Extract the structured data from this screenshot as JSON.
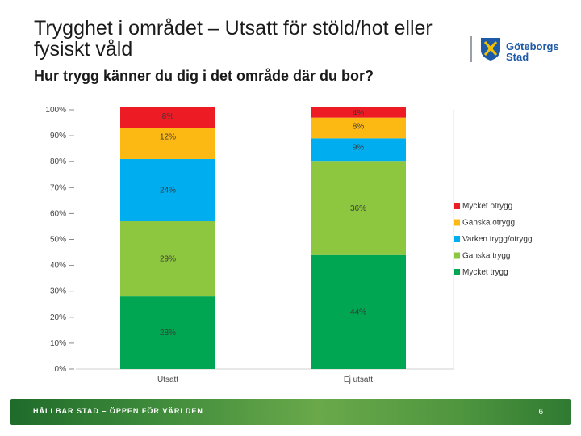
{
  "header": {
    "title": "Trygghet i området – Utsatt för stöld/hot eller fysiskt våld",
    "subtitle": "Hur trygg känner du dig i det område där du bor?"
  },
  "logo": {
    "name_line1": "Göteborgs",
    "name_line2": "Stad"
  },
  "footer": {
    "slogan": "HÅLLBAR STAD – ÖPPEN FÖR VÄRLDEN",
    "page_number": "6"
  },
  "chart_data": {
    "type": "bar",
    "stacked": true,
    "title": "",
    "xlabel": "",
    "ylabel": "",
    "ylim": [
      0,
      100
    ],
    "yticks": [
      "0%",
      "10%",
      "20%",
      "30%",
      "40%",
      "50%",
      "60%",
      "70%",
      "80%",
      "90%",
      "100%"
    ],
    "categories": [
      "Utsatt",
      "Ej utsatt"
    ],
    "legend_position": "right",
    "series": [
      {
        "name": "Mycket trygg",
        "color": "#00a651",
        "values": [
          28,
          44
        ],
        "labels": [
          "28%",
          "44%"
        ]
      },
      {
        "name": "Ganska trygg",
        "color": "#8dc63f",
        "values": [
          29,
          36
        ],
        "labels": [
          "29%",
          "36%"
        ]
      },
      {
        "name": "Varken trygg/otrygg",
        "color": "#00aeef",
        "values": [
          24,
          9
        ],
        "labels": [
          "24%",
          "9%"
        ]
      },
      {
        "name": "Ganska otrygg",
        "color": "#fdb913",
        "values": [
          12,
          8
        ],
        "labels": [
          "12%",
          "8%"
        ]
      },
      {
        "name": "Mycket otrygg",
        "color": "#ed1c24",
        "values": [
          8,
          4
        ],
        "labels": [
          "8%",
          "4%"
        ]
      }
    ]
  }
}
